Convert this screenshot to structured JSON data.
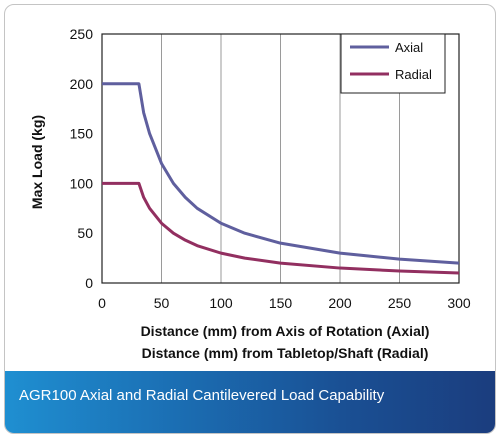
{
  "chart_data": {
    "type": "line",
    "title": "",
    "xlabel": [
      "Distance (mm) from Axis of Rotation (Axial)",
      "Distance (mm) from Tabletop/Shaft (Radial)"
    ],
    "ylabel": "Max Load (kg)",
    "xlim": [
      0,
      300
    ],
    "ylim": [
      0,
      250
    ],
    "xticks": [
      0,
      50,
      100,
      150,
      200,
      250,
      300
    ],
    "yticks": [
      0,
      50,
      100,
      150,
      200,
      250
    ],
    "grid": "vertical",
    "legend": "top-right",
    "series": [
      {
        "name": "Axial",
        "color": "#5f5f9e",
        "points": [
          [
            0,
            200
          ],
          [
            31,
            200
          ],
          [
            35,
            171
          ],
          [
            40,
            150
          ],
          [
            50,
            120
          ],
          [
            60,
            100
          ],
          [
            70,
            86
          ],
          [
            80,
            75
          ],
          [
            100,
            60
          ],
          [
            120,
            50
          ],
          [
            150,
            40
          ],
          [
            200,
            30
          ],
          [
            250,
            24
          ],
          [
            300,
            20
          ]
        ]
      },
      {
        "name": "Radial",
        "color": "#922f60",
        "points": [
          [
            0,
            100
          ],
          [
            31,
            100
          ],
          [
            35,
            86
          ],
          [
            40,
            75
          ],
          [
            50,
            60
          ],
          [
            60,
            50
          ],
          [
            70,
            43
          ],
          [
            80,
            37.5
          ],
          [
            100,
            30
          ],
          [
            120,
            25
          ],
          [
            150,
            20
          ],
          [
            200,
            15
          ],
          [
            250,
            12
          ],
          [
            300,
            10
          ]
        ]
      }
    ]
  },
  "caption": "AGR100 Axial and Radial Cantilevered Load Capability"
}
